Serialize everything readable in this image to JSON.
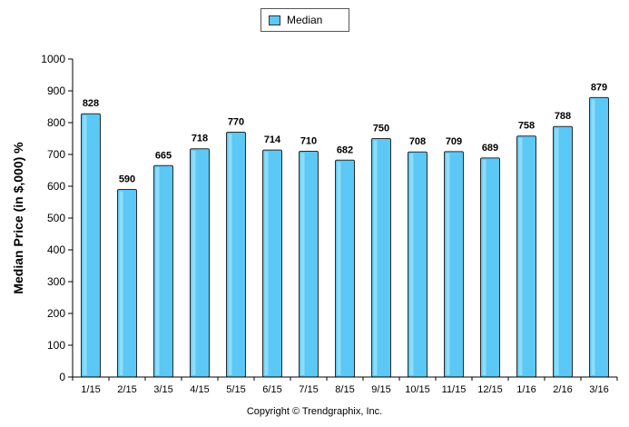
{
  "chart_data": {
    "type": "bar",
    "categories": [
      "1/15",
      "2/15",
      "3/15",
      "4/15",
      "5/15",
      "6/15",
      "7/15",
      "8/15",
      "9/15",
      "10/15",
      "11/15",
      "12/15",
      "1/16",
      "2/16",
      "3/16"
    ],
    "series": [
      {
        "name": "Median",
        "values": [
          828,
          590,
          665,
          718,
          770,
          714,
          710,
          682,
          750,
          708,
          709,
          689,
          758,
          788,
          879
        ]
      }
    ],
    "ylabel": "Median Price (in $,000) %",
    "ylim": [
      0,
      1000
    ],
    "yticks": [
      0,
      100,
      200,
      300,
      400,
      500,
      600,
      700,
      800,
      900,
      1000
    ],
    "legend_position": "top-center",
    "grid": false,
    "bar_color": "#5bc8f5"
  },
  "footer": {
    "copyright": "Copyright © Trendgraphix, Inc."
  }
}
